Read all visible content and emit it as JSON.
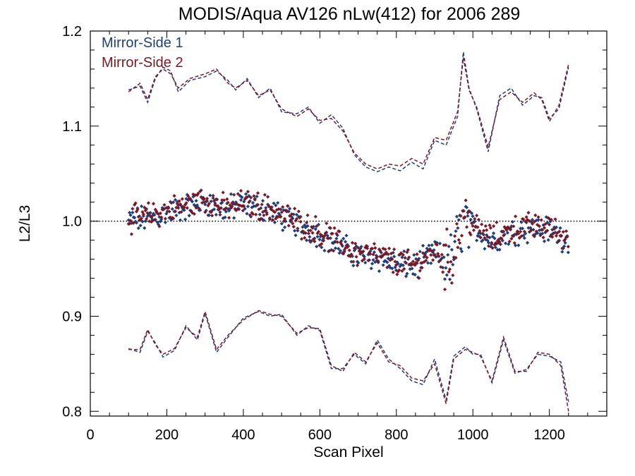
{
  "chart_data": {
    "type": "scatter",
    "title": "MODIS/Aqua AV126 nLw(412) for 2006 289",
    "xlabel": "Scan Pixel",
    "ylabel": "L2/L3",
    "xlim": [
      0,
      1350
    ],
    "ylim": [
      0.795,
      1.2
    ],
    "xticks": [
      0,
      200,
      400,
      600,
      800,
      1000,
      1200
    ],
    "yticks": [
      0.8,
      0.9,
      1.0,
      1.1,
      1.2
    ],
    "ytick_labels": [
      "0.8",
      "0.9",
      "1.0",
      "1.1",
      "1.2"
    ],
    "reference_line": 1.0,
    "legend_position": "top-left",
    "colors": {
      "ms1": "#1c3f7f",
      "ms2": "#7f1722"
    },
    "legend": [
      "Mirror-Side 1",
      "Mirror-Side 2"
    ],
    "mean_profile": [
      [
        100,
        1.001
      ],
      [
        150,
        1.004
      ],
      [
        200,
        1.01
      ],
      [
        250,
        1.016
      ],
      [
        300,
        1.022
      ],
      [
        350,
        1.013
      ],
      [
        400,
        1.018
      ],
      [
        450,
        1.015
      ],
      [
        500,
        1.006
      ],
      [
        550,
        0.996
      ],
      [
        600,
        0.988
      ],
      [
        650,
        0.975
      ],
      [
        700,
        0.965
      ],
      [
        750,
        0.963
      ],
      [
        800,
        0.956
      ],
      [
        850,
        0.953
      ],
      [
        900,
        0.968
      ],
      [
        940,
        0.955
      ],
      [
        975,
        1.005
      ],
      [
        1000,
        0.995
      ],
      [
        1050,
        0.98
      ],
      [
        1100,
        0.99
      ],
      [
        1150,
        0.994
      ],
      [
        1200,
        0.992
      ],
      [
        1250,
        0.98
      ]
    ],
    "series": [
      {
        "name": "Mirror-Side 1",
        "upper": [
          [
            100,
            1.138
          ],
          [
            130,
            1.142
          ],
          [
            150,
            1.125
          ],
          [
            170,
            1.15
          ],
          [
            190,
            1.162
          ],
          [
            210,
            1.158
          ],
          [
            230,
            1.136
          ],
          [
            260,
            1.148
          ],
          [
            300,
            1.152
          ],
          [
            330,
            1.158
          ],
          [
            360,
            1.148
          ],
          [
            380,
            1.138
          ],
          [
            410,
            1.15
          ],
          [
            440,
            1.13
          ],
          [
            470,
            1.14
          ],
          [
            500,
            1.115
          ],
          [
            540,
            1.113
          ],
          [
            570,
            1.12
          ],
          [
            600,
            1.103
          ],
          [
            630,
            1.112
          ],
          [
            660,
            1.098
          ],
          [
            690,
            1.07
          ],
          [
            720,
            1.057
          ],
          [
            750,
            1.052
          ],
          [
            780,
            1.057
          ],
          [
            810,
            1.053
          ],
          [
            840,
            1.062
          ],
          [
            870,
            1.055
          ],
          [
            900,
            1.085
          ],
          [
            930,
            1.08
          ],
          [
            960,
            1.11
          ],
          [
            975,
            1.178
          ],
          [
            990,
            1.14
          ],
          [
            1010,
            1.118
          ],
          [
            1040,
            1.073
          ],
          [
            1070,
            1.132
          ],
          [
            1100,
            1.14
          ],
          [
            1130,
            1.122
          ],
          [
            1160,
            1.132
          ],
          [
            1180,
            1.13
          ],
          [
            1200,
            1.108
          ],
          [
            1225,
            1.118
          ],
          [
            1250,
            1.162
          ]
        ],
        "lower": [
          [
            100,
            0.866
          ],
          [
            130,
            0.862
          ],
          [
            150,
            0.884
          ],
          [
            170,
            0.872
          ],
          [
            190,
            0.857
          ],
          [
            220,
            0.864
          ],
          [
            250,
            0.89
          ],
          [
            280,
            0.875
          ],
          [
            300,
            0.903
          ],
          [
            330,
            0.862
          ],
          [
            360,
            0.878
          ],
          [
            400,
            0.898
          ],
          [
            440,
            0.905
          ],
          [
            470,
            0.9
          ],
          [
            500,
            0.902
          ],
          [
            540,
            0.88
          ],
          [
            570,
            0.89
          ],
          [
            600,
            0.885
          ],
          [
            630,
            0.845
          ],
          [
            660,
            0.845
          ],
          [
            690,
            0.86
          ],
          [
            720,
            0.85
          ],
          [
            750,
            0.875
          ],
          [
            780,
            0.855
          ],
          [
            810,
            0.845
          ],
          [
            840,
            0.832
          ],
          [
            870,
            0.828
          ],
          [
            900,
            0.855
          ],
          [
            930,
            0.812
          ],
          [
            950,
            0.858
          ],
          [
            980,
            0.868
          ],
          [
            1000,
            0.86
          ],
          [
            1020,
            0.86
          ],
          [
            1050,
            0.83
          ],
          [
            1080,
            0.875
          ],
          [
            1110,
            0.84
          ],
          [
            1140,
            0.844
          ],
          [
            1170,
            0.86
          ],
          [
            1200,
            0.858
          ],
          [
            1230,
            0.852
          ],
          [
            1250,
            0.81
          ]
        ]
      },
      {
        "name": "Mirror-Side 2",
        "upper": [
          [
            100,
            1.136
          ],
          [
            130,
            1.145
          ],
          [
            150,
            1.128
          ],
          [
            170,
            1.152
          ],
          [
            190,
            1.16
          ],
          [
            210,
            1.155
          ],
          [
            230,
            1.14
          ],
          [
            260,
            1.15
          ],
          [
            300,
            1.155
          ],
          [
            330,
            1.16
          ],
          [
            360,
            1.145
          ],
          [
            380,
            1.14
          ],
          [
            410,
            1.148
          ],
          [
            440,
            1.132
          ],
          [
            470,
            1.138
          ],
          [
            500,
            1.118
          ],
          [
            540,
            1.11
          ],
          [
            570,
            1.118
          ],
          [
            600,
            1.106
          ],
          [
            630,
            1.108
          ],
          [
            660,
            1.095
          ],
          [
            690,
            1.072
          ],
          [
            720,
            1.06
          ],
          [
            750,
            1.055
          ],
          [
            780,
            1.06
          ],
          [
            810,
            1.058
          ],
          [
            840,
            1.066
          ],
          [
            870,
            1.06
          ],
          [
            900,
            1.088
          ],
          [
            930,
            1.085
          ],
          [
            960,
            1.115
          ],
          [
            975,
            1.172
          ],
          [
            990,
            1.138
          ],
          [
            1010,
            1.12
          ],
          [
            1040,
            1.078
          ],
          [
            1070,
            1.128
          ],
          [
            1100,
            1.136
          ],
          [
            1130,
            1.125
          ],
          [
            1160,
            1.135
          ],
          [
            1180,
            1.128
          ],
          [
            1200,
            1.105
          ],
          [
            1225,
            1.122
          ],
          [
            1250,
            1.165
          ]
        ],
        "lower": [
          [
            100,
            0.865
          ],
          [
            130,
            0.865
          ],
          [
            150,
            0.886
          ],
          [
            170,
            0.87
          ],
          [
            190,
            0.86
          ],
          [
            220,
            0.866
          ],
          [
            250,
            0.888
          ],
          [
            280,
            0.878
          ],
          [
            300,
            0.905
          ],
          [
            330,
            0.865
          ],
          [
            360,
            0.88
          ],
          [
            400,
            0.896
          ],
          [
            440,
            0.906
          ],
          [
            470,
            0.902
          ],
          [
            500,
            0.9
          ],
          [
            540,
            0.882
          ],
          [
            570,
            0.888
          ],
          [
            600,
            0.887
          ],
          [
            630,
            0.848
          ],
          [
            660,
            0.842
          ],
          [
            690,
            0.862
          ],
          [
            720,
            0.852
          ],
          [
            750,
            0.872
          ],
          [
            780,
            0.852
          ],
          [
            810,
            0.848
          ],
          [
            840,
            0.835
          ],
          [
            870,
            0.832
          ],
          [
            900,
            0.85
          ],
          [
            930,
            0.808
          ],
          [
            950,
            0.855
          ],
          [
            980,
            0.865
          ],
          [
            1000,
            0.862
          ],
          [
            1020,
            0.858
          ],
          [
            1050,
            0.832
          ],
          [
            1080,
            0.878
          ],
          [
            1110,
            0.842
          ],
          [
            1140,
            0.842
          ],
          [
            1170,
            0.862
          ],
          [
            1200,
            0.86
          ],
          [
            1230,
            0.848
          ],
          [
            1250,
            0.8
          ]
        ]
      }
    ]
  }
}
